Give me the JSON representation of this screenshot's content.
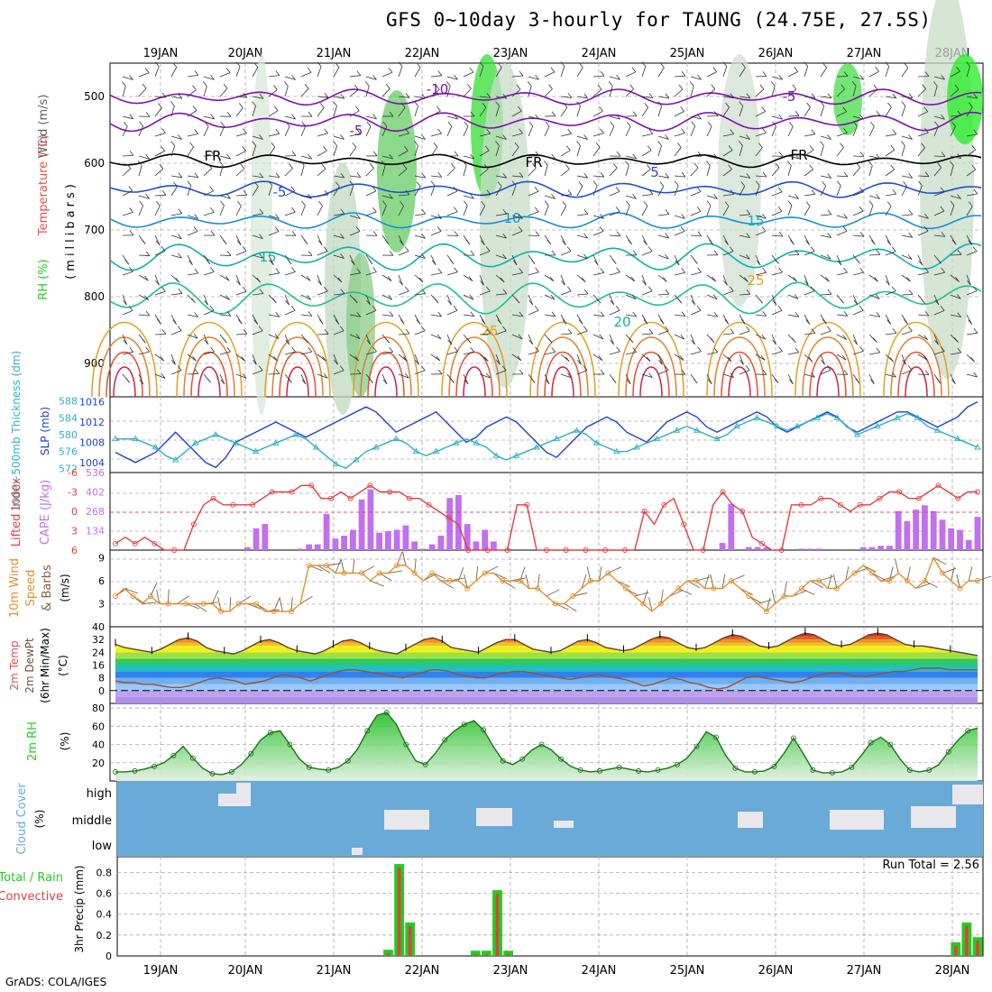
{
  "title": "GFS 0~10day 3-hourly for TAUNG (24.75E, 27.5S)",
  "footer": "GrADS: COLA/IGES",
  "dates": [
    "19JAN",
    "20JAN",
    "21JAN",
    "22JAN",
    "23JAN",
    "24JAN",
    "25JAN",
    "26JAN",
    "27JAN",
    "28JAN"
  ],
  "colors": {
    "grid": "#aaaaaa",
    "rh": "#22cc22",
    "temp_label": "#e05050",
    "wind_label": "#606060",
    "slp": "#2040d0",
    "thick": "#30b0c0",
    "cape": "#c070f0",
    "lifted": "#e04040",
    "wind10": "#e09030",
    "barb": "#806040",
    "cloud": "#6aaad8",
    "cloudfill": "#e8e8ec",
    "precip_total": "#22cc22",
    "precip_conv": "#e04040"
  },
  "panels": {
    "profile": {
      "labels": [
        "Wind (m/s)",
        "Temperature (°C)",
        "RH (%)",
        "(millibars)"
      ],
      "yticks": [
        "500",
        "600",
        "700",
        "800",
        "900"
      ],
      "contour_labels": [
        "-10",
        "-5",
        "-5",
        "FR",
        "FR",
        "FR",
        "5",
        "-5",
        "10",
        "15",
        "15",
        "20",
        "25",
        "25"
      ]
    },
    "slp": {
      "labels": [
        "1000~500mb Thickness (dm)",
        "SLP (mb)"
      ],
      "left_ticks": [
        "588",
        "584",
        "580",
        "576",
        "572"
      ],
      "right_ticks": [
        "1016",
        "1012",
        "1008",
        "1004"
      ]
    },
    "cape": {
      "labels": [
        "Lifted Index",
        "CAPE (J/kg)"
      ],
      "left_ticks": [
        "-6",
        "-3",
        "0",
        "3",
        "6"
      ],
      "right_ticks": [
        "536",
        "402",
        "268",
        "134"
      ]
    },
    "wind": {
      "labels": [
        "10m Wind",
        "Speed",
        "& Barbs",
        "(m/s)"
      ],
      "yticks": [
        "9",
        "6",
        "3"
      ]
    },
    "temp": {
      "labels": [
        "2m Temp",
        "2m DewPt",
        "(6hr Min/Max)",
        "(°C)"
      ],
      "yticks": [
        "40",
        "32",
        "24",
        "16",
        "8",
        "0"
      ]
    },
    "rh2m": {
      "labels": [
        "2m RH",
        "(%)"
      ],
      "yticks": [
        "80",
        "60",
        "40",
        "20"
      ]
    },
    "cloud": {
      "labels": [
        "Cloud Cover",
        "(%)"
      ],
      "levels": [
        "high",
        "middle",
        "low"
      ]
    },
    "precip": {
      "labels": [
        "Total / Rain",
        "Convective",
        "3hr Precip (mm)"
      ],
      "yticks": [
        "0.8",
        "0.6",
        "0.4",
        "0.2",
        "0"
      ],
      "run_total": "Run Total = 2.56"
    }
  },
  "chart_data": [
    {
      "type": "line",
      "name": "slp",
      "ylim": [
        1002,
        1017
      ],
      "values": [
        1006,
        1005,
        1004,
        1005,
        1006,
        1008,
        1010,
        1008,
        1006,
        1004,
        1003,
        1005,
        1008,
        1009,
        1010,
        1011,
        1012,
        1011,
        1010,
        1009,
        1010,
        1011,
        1012,
        1013,
        1014,
        1015,
        1014,
        1012,
        1010,
        1011,
        1012,
        1013,
        1014,
        1012,
        1010,
        1008,
        1009,
        1011,
        1012,
        1013,
        1012,
        1010,
        1008,
        1006,
        1005,
        1007,
        1009,
        1011,
        1012,
        1013,
        1012,
        1010,
        1009,
        1008,
        1010,
        1012,
        1013,
        1014,
        1013,
        1011,
        1010,
        1011,
        1012,
        1013,
        1014,
        1013,
        1011,
        1010,
        1011,
        1012,
        1013,
        1014,
        1013,
        1011,
        1010,
        1011,
        1012,
        1013,
        1014,
        1014,
        1013,
        1012,
        1011,
        1012,
        1013,
        1015,
        1016
      ]
    },
    {
      "type": "line",
      "name": "thickness",
      "ylim": [
        571,
        589
      ],
      "values": [
        579,
        579,
        579,
        578,
        577,
        575,
        574,
        576,
        578,
        579,
        580,
        579,
        578,
        577,
        576,
        577,
        578,
        579,
        580,
        579,
        577,
        575,
        573,
        572,
        574,
        576,
        577,
        578,
        579,
        578,
        576,
        575,
        576,
        577,
        578,
        579,
        578,
        577,
        575,
        574,
        575,
        576,
        577,
        578,
        579,
        580,
        581,
        580,
        578,
        577,
        576,
        576,
        577,
        578,
        579,
        580,
        581,
        582,
        581,
        580,
        579,
        580,
        582,
        583,
        584,
        583,
        582,
        581,
        582,
        583,
        584,
        585,
        584,
        582,
        580,
        581,
        582,
        583,
        584,
        585,
        584,
        582,
        581,
        580,
        579,
        578,
        577
      ]
    },
    {
      "type": "bar",
      "name": "cape",
      "ylim": [
        0,
        536
      ],
      "values": [
        0,
        0,
        0,
        0,
        0,
        0,
        0,
        0,
        0,
        0,
        0,
        0,
        0,
        0,
        0,
        20,
        150,
        180,
        0,
        0,
        0,
        10,
        40,
        40,
        250,
        80,
        100,
        140,
        350,
        420,
        120,
        130,
        140,
        170,
        60,
        10,
        40,
        100,
        360,
        380,
        180,
        60,
        140,
        60,
        0,
        0,
        0,
        0,
        0,
        0,
        0,
        0,
        0,
        0,
        0,
        0,
        0,
        0,
        0,
        0,
        0,
        0,
        0,
        0,
        0,
        0,
        0,
        0,
        0,
        50,
        320,
        0,
        20,
        20,
        20,
        0,
        0,
        0,
        10,
        10,
        10,
        0,
        0,
        0,
        0,
        20,
        20,
        30,
        30,
        270,
        200,
        280,
        310,
        270,
        210,
        150,
        140,
        70,
        230
      ]
    },
    {
      "type": "line",
      "name": "lifted_index",
      "ylim": [
        6,
        -6
      ],
      "values": [
        5,
        4,
        5,
        4,
        5,
        6,
        6,
        6,
        2,
        -1,
        -2,
        -1,
        -1,
        -1,
        -1,
        -2,
        -3,
        -3,
        -3,
        -4,
        -4,
        -2,
        -2,
        -3,
        -2,
        -3,
        -4,
        -3,
        -3,
        -3,
        -2,
        -2,
        -1,
        0,
        1,
        2,
        6,
        6,
        6,
        6,
        6,
        -1,
        -1,
        6,
        6,
        6,
        6,
        6,
        6,
        6,
        6,
        6,
        6,
        6,
        0,
        2,
        -1,
        -2,
        2,
        6,
        6,
        -1,
        -3,
        -1,
        0,
        4,
        5,
        6,
        6,
        -1,
        -1,
        -1,
        -2,
        -2,
        -1,
        0,
        -1,
        -1,
        -2,
        -3,
        -3,
        -2,
        -2,
        -3,
        -4,
        -3,
        -2,
        -3,
        -3
      ]
    },
    {
      "type": "line",
      "name": "wind_speed_10m",
      "ylim": [
        0,
        10
      ],
      "values": [
        4,
        5,
        4,
        3,
        4,
        3,
        3,
        3,
        3,
        3,
        3,
        3,
        2,
        2,
        3,
        3,
        3,
        2,
        2,
        2,
        2,
        3,
        8,
        8,
        8,
        7,
        7,
        7,
        7,
        6,
        7,
        7,
        8,
        8,
        7,
        6,
        7,
        6,
        6,
        6,
        5,
        6,
        7,
        7,
        6,
        6,
        6,
        5,
        5,
        4,
        3,
        3,
        4,
        5,
        6,
        6,
        7,
        6,
        5,
        4,
        3,
        2,
        3,
        4,
        5,
        6,
        6,
        5,
        5,
        5,
        6,
        5,
        4,
        3,
        2,
        3,
        4,
        4,
        5,
        6,
        6,
        5,
        5,
        6,
        7,
        8,
        7,
        6,
        6,
        7,
        6,
        5,
        6,
        9,
        7,
        6,
        5,
        6,
        6
      ]
    },
    {
      "type": "area",
      "name": "temp_2m",
      "ylim": [
        -8,
        40
      ],
      "values": [
        29,
        27,
        26,
        25,
        24,
        26,
        29,
        32,
        33,
        31,
        27,
        25,
        24,
        23,
        25,
        28,
        31,
        32,
        30,
        27,
        25,
        24,
        23,
        25,
        28,
        31,
        32,
        30,
        27,
        25,
        24,
        23,
        26,
        29,
        32,
        33,
        31,
        27,
        26,
        25,
        24,
        27,
        30,
        32,
        32,
        29,
        26,
        25,
        24,
        25,
        28,
        31,
        32,
        30,
        27,
        26,
        25,
        26,
        29,
        32,
        34,
        33,
        30,
        27,
        26,
        27,
        30,
        33,
        35,
        34,
        31,
        28,
        27,
        28,
        31,
        34,
        36,
        35,
        32,
        29,
        28,
        29,
        32,
        35,
        36,
        35,
        32,
        29,
        28,
        28,
        27,
        26,
        25,
        24,
        23,
        22
      ]
    },
    {
      "type": "line",
      "name": "dewpoint_2m",
      "ylim": [
        -8,
        40
      ],
      "values": [
        6,
        5,
        5,
        4,
        4,
        3,
        2,
        2,
        3,
        5,
        7,
        8,
        7,
        6,
        4,
        5,
        6,
        8,
        10,
        9,
        8,
        6,
        8,
        10,
        12,
        13,
        13,
        12,
        11,
        10,
        9,
        8,
        10,
        11,
        13,
        13,
        12,
        10,
        9,
        8,
        8,
        10,
        11,
        12,
        12,
        11,
        10,
        9,
        8,
        7,
        8,
        9,
        10,
        9,
        8,
        7,
        5,
        3,
        4,
        6,
        8,
        7,
        5,
        4,
        2,
        1,
        2,
        5,
        8,
        9,
        8,
        7,
        6,
        5,
        6,
        8,
        10,
        11,
        11,
        10,
        9,
        9,
        10,
        11,
        12,
        12,
        13,
        14,
        14,
        14,
        13,
        13,
        13,
        13
      ]
    },
    {
      "type": "area",
      "name": "rh_2m",
      "ylim": [
        0,
        85
      ],
      "values": [
        10,
        10,
        11,
        13,
        16,
        20,
        28,
        38,
        25,
        14,
        8,
        7,
        10,
        18,
        30,
        45,
        53,
        55,
        40,
        24,
        15,
        13,
        12,
        15,
        22,
        35,
        55,
        72,
        75,
        62,
        40,
        22,
        18,
        30,
        45,
        55,
        62,
        66,
        56,
        38,
        22,
        18,
        24,
        34,
        40,
        34,
        24,
        16,
        12,
        10,
        11,
        13,
        15,
        13,
        11,
        10,
        12,
        14,
        18,
        25,
        38,
        54,
        48,
        28,
        14,
        10,
        10,
        11,
        16,
        30,
        47,
        30,
        12,
        9,
        9,
        10,
        15,
        28,
        42,
        48,
        40,
        24,
        12,
        10,
        12,
        18,
        32,
        45,
        55,
        58
      ]
    },
    {
      "type": "bar",
      "name": "precip_3hr",
      "ylim": [
        0,
        0.95
      ],
      "values": [
        0,
        0,
        0,
        0,
        0,
        0,
        0,
        0,
        0,
        0,
        0,
        0,
        0,
        0,
        0,
        0,
        0,
        0,
        0,
        0,
        0,
        0,
        0,
        0,
        0,
        0.06,
        0.88,
        0.32,
        0,
        0,
        0,
        0,
        0,
        0.05,
        0.05,
        0.63,
        0.05,
        0,
        0,
        0,
        0,
        0,
        0,
        0,
        0,
        0,
        0,
        0,
        0,
        0,
        0,
        0,
        0,
        0,
        0,
        0,
        0,
        0,
        0,
        0,
        0,
        0,
        0,
        0,
        0,
        0,
        0,
        0,
        0,
        0,
        0,
        0,
        0,
        0,
        0,
        0,
        0,
        0.13,
        0.32,
        0.18
      ]
    }
  ]
}
